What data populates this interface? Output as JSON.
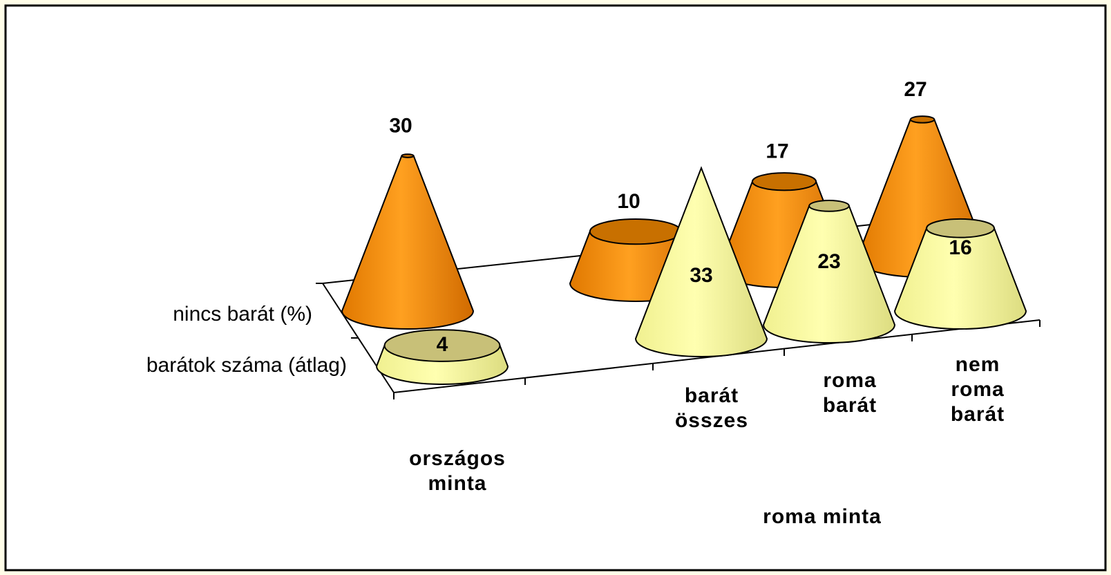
{
  "chart_data": {
    "type": "cone",
    "categories": [
      "országos\nminta",
      "barát\nösszes",
      "roma\nbarát",
      "nem\nroma\nbarát"
    ],
    "group_label": "roma minta",
    "series": [
      {
        "name": "nincs barát (%)",
        "color": "#f39200",
        "values": [
          30,
          10,
          17,
          27
        ]
      },
      {
        "name": "barátok száma (átlag)",
        "color": "#ffff99",
        "values": [
          4,
          33,
          23,
          16
        ]
      }
    ]
  }
}
